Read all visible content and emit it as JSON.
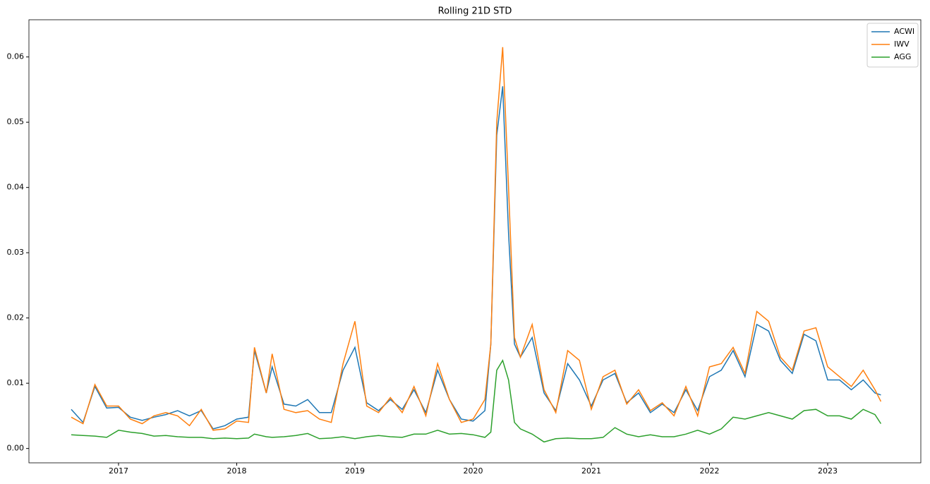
{
  "chart_data": {
    "type": "line",
    "title": "Rolling 21D STD",
    "x": [
      2016.6,
      2016.7,
      2016.8,
      2016.9,
      2017.0,
      2017.1,
      2017.2,
      2017.3,
      2017.4,
      2017.5,
      2017.6,
      2017.7,
      2017.8,
      2017.9,
      2018.0,
      2018.1,
      2018.15,
      2018.25,
      2018.3,
      2018.4,
      2018.5,
      2018.6,
      2018.7,
      2018.8,
      2018.9,
      2019.0,
      2019.1,
      2019.2,
      2019.3,
      2019.4,
      2019.5,
      2019.6,
      2019.7,
      2019.8,
      2019.9,
      2020.0,
      2020.1,
      2020.15,
      2020.2,
      2020.25,
      2020.3,
      2020.35,
      2020.4,
      2020.5,
      2020.6,
      2020.7,
      2020.8,
      2020.9,
      2021.0,
      2021.1,
      2021.2,
      2021.3,
      2021.4,
      2021.5,
      2021.6,
      2021.7,
      2021.8,
      2021.9,
      2022.0,
      2022.1,
      2022.2,
      2022.3,
      2022.4,
      2022.5,
      2022.6,
      2022.7,
      2022.8,
      2022.9,
      2023.0,
      2023.1,
      2023.2,
      2023.3,
      2023.4,
      2023.45
    ],
    "series": [
      {
        "name": "ACWI",
        "color": "#1f77b4",
        "values": [
          0.006,
          0.004,
          0.0095,
          0.0062,
          0.0063,
          0.0048,
          0.0043,
          0.0048,
          0.0052,
          0.0058,
          0.005,
          0.0058,
          0.003,
          0.0035,
          0.0045,
          0.0048,
          0.015,
          0.0085,
          0.0125,
          0.0068,
          0.0065,
          0.0075,
          0.0055,
          0.0055,
          0.012,
          0.0155,
          0.007,
          0.0058,
          0.0075,
          0.006,
          0.009,
          0.0055,
          0.012,
          0.0075,
          0.0045,
          0.0042,
          0.0058,
          0.016,
          0.048,
          0.0555,
          0.033,
          0.016,
          0.014,
          0.017,
          0.0085,
          0.0058,
          0.013,
          0.0105,
          0.0065,
          0.0105,
          0.0115,
          0.007,
          0.0085,
          0.0055,
          0.0068,
          0.0055,
          0.009,
          0.0058,
          0.011,
          0.012,
          0.015,
          0.011,
          0.019,
          0.018,
          0.0135,
          0.0115,
          0.0175,
          0.0165,
          0.0105,
          0.0105,
          0.009,
          0.0105,
          0.0085,
          0.0082
        ]
      },
      {
        "name": "IWV",
        "color": "#ff7f0e",
        "values": [
          0.0048,
          0.0038,
          0.0098,
          0.0065,
          0.0065,
          0.0045,
          0.0038,
          0.005,
          0.0055,
          0.005,
          0.0035,
          0.006,
          0.0028,
          0.003,
          0.0042,
          0.004,
          0.0155,
          0.0085,
          0.0145,
          0.006,
          0.0055,
          0.0058,
          0.0045,
          0.004,
          0.013,
          0.0195,
          0.0065,
          0.0055,
          0.0078,
          0.0055,
          0.0095,
          0.005,
          0.013,
          0.0075,
          0.004,
          0.0045,
          0.0075,
          0.016,
          0.05,
          0.0615,
          0.04,
          0.017,
          0.014,
          0.019,
          0.009,
          0.0055,
          0.015,
          0.0135,
          0.006,
          0.011,
          0.012,
          0.0068,
          0.009,
          0.0058,
          0.007,
          0.005,
          0.0095,
          0.005,
          0.0125,
          0.013,
          0.0155,
          0.0115,
          0.021,
          0.0195,
          0.014,
          0.012,
          0.018,
          0.0185,
          0.0125,
          0.011,
          0.0095,
          0.012,
          0.009,
          0.0072
        ]
      },
      {
        "name": "AGG",
        "color": "#2ca02c",
        "values": [
          0.0021,
          0.002,
          0.0019,
          0.0017,
          0.0028,
          0.0025,
          0.0023,
          0.0019,
          0.002,
          0.0018,
          0.0017,
          0.0017,
          0.0015,
          0.0016,
          0.0015,
          0.0016,
          0.0022,
          0.0018,
          0.0017,
          0.0018,
          0.002,
          0.0023,
          0.0015,
          0.0016,
          0.0018,
          0.0015,
          0.0018,
          0.002,
          0.0018,
          0.0017,
          0.0022,
          0.0022,
          0.0028,
          0.0022,
          0.0023,
          0.0021,
          0.0017,
          0.0025,
          0.012,
          0.0135,
          0.0105,
          0.004,
          0.003,
          0.0022,
          0.001,
          0.0015,
          0.0016,
          0.0015,
          0.0015,
          0.0017,
          0.0032,
          0.0022,
          0.0018,
          0.0021,
          0.0018,
          0.0018,
          0.0022,
          0.0028,
          0.0022,
          0.003,
          0.0048,
          0.0045,
          0.005,
          0.0055,
          0.005,
          0.0045,
          0.0058,
          0.006,
          0.005,
          0.005,
          0.0045,
          0.006,
          0.0052,
          0.0038
        ]
      }
    ],
    "xlim": [
      2016.242,
      2023.788
    ],
    "xticks": [
      2017,
      2018,
      2019,
      2020,
      2021,
      2022,
      2023
    ],
    "ylim": [
      -0.0022,
      0.0657
    ],
    "yticks": [
      {
        "value": 0,
        "label": "0.00"
      },
      0.01,
      0.02,
      0.03,
      0.04,
      0.05,
      0.06
    ],
    "legend": "upper right"
  }
}
